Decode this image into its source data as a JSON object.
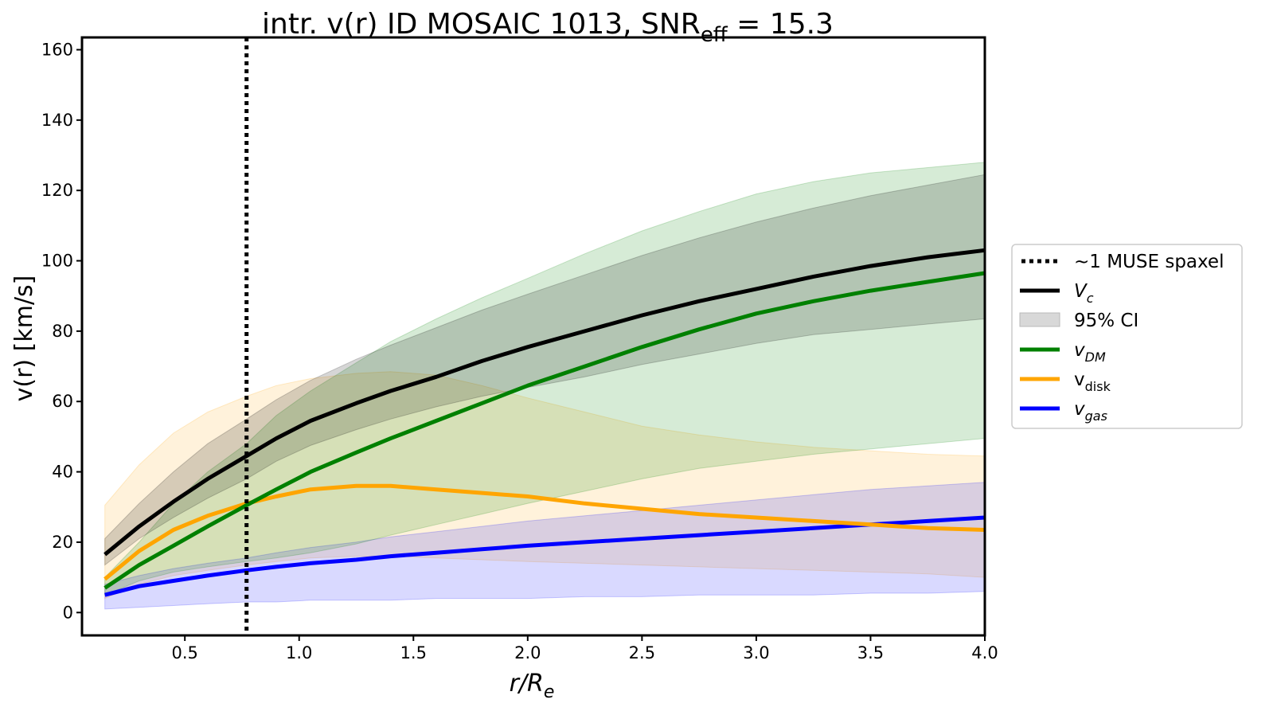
{
  "chart_data": {
    "type": "line",
    "title": {
      "main": "intr. v(r) ID MOSAIC 1013, SNR",
      "sub": "eff",
      "tail": " = 15.3"
    },
    "xlabel": {
      "base": "r/R",
      "sub": "e"
    },
    "ylabel": "v(r) [km/s]",
    "xlim": [
      0.05,
      4.0
    ],
    "ylim": [
      -6.5,
      163.5
    ],
    "xticks": [
      0.5,
      1.0,
      1.5,
      2.0,
      2.5,
      3.0,
      3.5,
      4.0
    ],
    "xtick_labels": [
      "0.5",
      "1.0",
      "1.5",
      "2.0",
      "2.5",
      "3.0",
      "3.5",
      "4.0"
    ],
    "yticks": [
      0,
      20,
      40,
      60,
      80,
      100,
      120,
      140,
      160
    ],
    "ytick_labels": [
      "0",
      "20",
      "40",
      "60",
      "80",
      "100",
      "120",
      "140",
      "160"
    ],
    "grid": false,
    "legend_position": "outside-right",
    "vline": {
      "x": 0.77,
      "style": "dotted",
      "color": "#000000",
      "label": "~1 MUSE spaxel"
    },
    "x": [
      0.15,
      0.3,
      0.45,
      0.6,
      0.77,
      0.9,
      1.05,
      1.25,
      1.4,
      1.6,
      1.8,
      2.0,
      2.25,
      2.5,
      2.75,
      3.0,
      3.25,
      3.5,
      3.75,
      4.0
    ],
    "series": [
      {
        "key": "vc",
        "name": "V",
        "sub": "c",
        "italic": true,
        "color": "#000000",
        "values": [
          16.5,
          24.5,
          31.5,
          38.0,
          44.5,
          49.5,
          54.5,
          59.5,
          63.0,
          67.0,
          71.5,
          75.5,
          80.0,
          84.5,
          88.5,
          92.0,
          95.5,
          98.5,
          101.0,
          103.0
        ],
        "lower": [
          13.5,
          21.0,
          27.0,
          32.5,
          38.0,
          43.0,
          47.5,
          52.0,
          55.0,
          58.5,
          61.5,
          64.0,
          67.0,
          70.5,
          73.5,
          76.5,
          79.0,
          80.5,
          82.0,
          83.5
        ],
        "upper": [
          21.0,
          31.0,
          40.0,
          48.0,
          55.0,
          60.5,
          66.0,
          72.0,
          76.0,
          81.0,
          86.0,
          90.5,
          96.0,
          101.5,
          106.5,
          111.0,
          115.0,
          118.5,
          121.5,
          124.5
        ]
      },
      {
        "key": "vdm",
        "name": "v",
        "sub": "DM",
        "italic": true,
        "color": "#008000",
        "values": [
          7.0,
          13.5,
          19.0,
          24.5,
          30.5,
          35.0,
          40.0,
          45.5,
          49.5,
          54.5,
          59.5,
          64.5,
          70.0,
          75.5,
          80.5,
          85.0,
          88.5,
          91.5,
          94.0,
          96.5
        ],
        "lower": [
          5.0,
          9.0,
          11.5,
          13.0,
          14.5,
          15.5,
          17.0,
          19.5,
          22.0,
          25.0,
          28.0,
          31.0,
          34.5,
          38.0,
          41.0,
          43.0,
          45.0,
          46.5,
          48.0,
          49.5
        ],
        "upper": [
          10.0,
          20.0,
          31.0,
          40.0,
          48.0,
          56.0,
          63.0,
          71.0,
          77.0,
          83.5,
          89.5,
          95.0,
          102.0,
          108.5,
          114.0,
          119.0,
          122.5,
          125.0,
          126.5,
          128.0
        ]
      },
      {
        "key": "vdisk",
        "name": "v",
        "sub": "disk",
        "italic": true,
        "color": "#FFA500",
        "values": [
          9.5,
          17.5,
          23.5,
          27.5,
          31.0,
          33.0,
          35.0,
          36.0,
          36.0,
          35.0,
          34.0,
          33.0,
          31.0,
          29.5,
          28.0,
          27.0,
          26.0,
          25.0,
          24.0,
          23.5
        ],
        "lower": [
          4.0,
          8.0,
          10.5,
          12.0,
          13.5,
          14.5,
          15.5,
          16.0,
          16.0,
          15.5,
          15.0,
          14.5,
          14.0,
          13.5,
          13.0,
          12.5,
          12.0,
          11.5,
          11.0,
          10.0
        ],
        "upper": [
          30.5,
          42.0,
          51.0,
          57.0,
          61.5,
          64.5,
          66.5,
          68.0,
          68.5,
          67.5,
          64.5,
          61.0,
          57.0,
          53.0,
          50.5,
          48.5,
          47.0,
          46.0,
          45.0,
          44.5
        ]
      },
      {
        "key": "vgas",
        "name": "v",
        "sub": "gas",
        "italic": true,
        "color": "#0000FF",
        "values": [
          5.0,
          7.5,
          9.0,
          10.5,
          12.0,
          13.0,
          14.0,
          15.0,
          16.0,
          17.0,
          18.0,
          19.0,
          20.0,
          21.0,
          22.0,
          23.0,
          24.0,
          25.0,
          26.0,
          27.0
        ],
        "lower": [
          1.0,
          1.5,
          2.0,
          2.5,
          3.0,
          3.0,
          3.5,
          3.5,
          3.5,
          4.0,
          4.0,
          4.0,
          4.5,
          4.5,
          5.0,
          5.0,
          5.0,
          5.5,
          5.5,
          6.0
        ],
        "upper": [
          8.0,
          10.5,
          12.5,
          14.0,
          15.5,
          17.0,
          18.5,
          20.0,
          21.5,
          23.0,
          24.5,
          26.0,
          27.5,
          29.0,
          30.5,
          32.0,
          33.5,
          35.0,
          36.0,
          37.0
        ]
      }
    ],
    "legend": [
      {
        "kind": "dotted",
        "label": "~1 MUSE spaxel",
        "color": "#000000"
      },
      {
        "kind": "line",
        "label": "V",
        "sub": "c",
        "italic": true,
        "color": "#000000"
      },
      {
        "kind": "patch",
        "label": "95% CI",
        "color": "#d8d8d8"
      },
      {
        "kind": "line",
        "label": "v",
        "sub": "DM",
        "italic": true,
        "color": "#008000"
      },
      {
        "kind": "line",
        "label": "v",
        "sub": "disk",
        "italic": false,
        "color": "#FFA500"
      },
      {
        "kind": "line",
        "label": "v",
        "sub": "gas",
        "italic": true,
        "color": "#0000FF"
      }
    ]
  }
}
